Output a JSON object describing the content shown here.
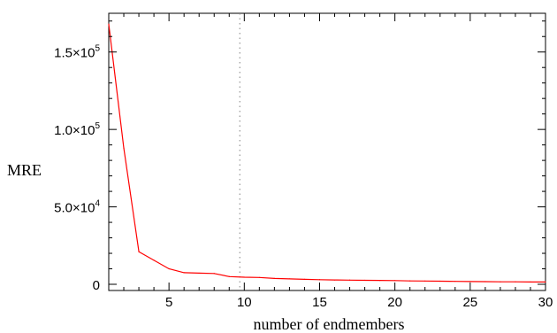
{
  "chart_data": {
    "type": "line",
    "title": "",
    "xlabel": "number of endmembers",
    "ylabel": "MRE",
    "xlim": [
      1,
      30
    ],
    "ylim": [
      -4000,
      175000
    ],
    "x_ticks": [
      5,
      10,
      15,
      20,
      25,
      30
    ],
    "x_tick_labels": [
      "5",
      "10",
      "15",
      "20",
      "25",
      "30"
    ],
    "y_ticks": [
      0,
      50000,
      100000,
      150000
    ],
    "y_tick_labels": [
      {
        "mantissa": "0",
        "times": "",
        "base": "",
        "exp": ""
      },
      {
        "mantissa": "5.0",
        "times": "×",
        "base": "10",
        "exp": "4"
      },
      {
        "mantissa": "1.0",
        "times": "×",
        "base": "10",
        "exp": "5"
      },
      {
        "mantissa": "1.5",
        "times": "×",
        "base": "10",
        "exp": "5"
      }
    ],
    "grid": false,
    "vertical_reference_line": {
      "x": 9.7,
      "style": "dotted",
      "color": "#808080"
    },
    "series": [
      {
        "color": "#ff0000",
        "x": [
          1,
          2,
          3,
          4,
          5,
          6,
          7,
          8,
          9,
          10,
          11,
          12,
          13,
          14,
          15,
          16,
          17,
          18,
          19,
          20,
          21,
          22,
          23,
          24,
          25,
          26,
          27,
          28,
          29,
          30
        ],
        "y": [
          168000,
          88000,
          21000,
          15500,
          10000,
          7500,
          7200,
          7000,
          5000,
          4600,
          4400,
          3800,
          3500,
          3200,
          3000,
          2800,
          2700,
          2600,
          2500,
          2400,
          2200,
          2100,
          2000,
          1900,
          1800,
          1700,
          1600,
          1600,
          1500,
          1500
        ]
      }
    ]
  }
}
